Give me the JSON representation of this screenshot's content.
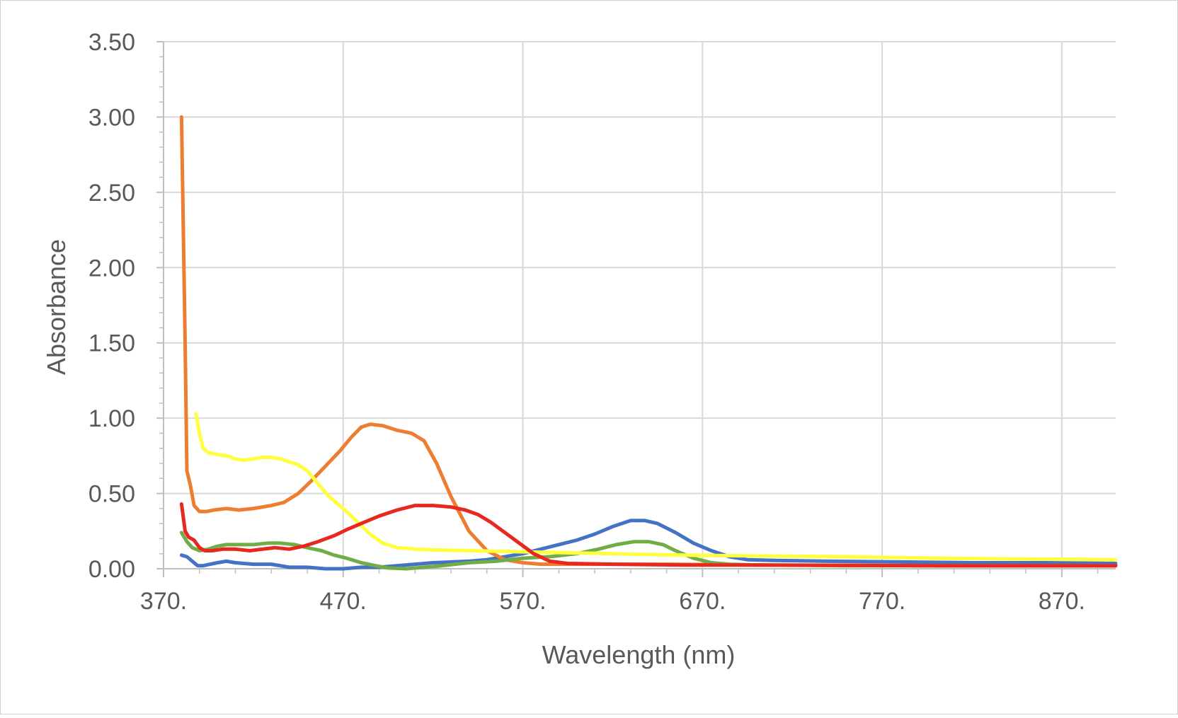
{
  "chart_data": {
    "type": "line",
    "title": "",
    "xlabel": "Wavelength (nm)",
    "ylabel": "Absorbance",
    "xlim": [
      370,
      900
    ],
    "ylim": [
      0,
      3.5
    ],
    "x_ticks": [
      370,
      470,
      570,
      670,
      770,
      870
    ],
    "x_tick_labels": [
      "370.",
      "470.",
      "570.",
      "670.",
      "770.",
      "870."
    ],
    "y_ticks": [
      0,
      0.5,
      1,
      1.5,
      2,
      2.5,
      3,
      3.5
    ],
    "y_tick_labels": [
      "0.00",
      "0.50",
      "1.00",
      "1.50",
      "2.00",
      "2.50",
      "3.00",
      "3.50"
    ],
    "grid": true,
    "legend": "none",
    "series": [
      {
        "color": "#4472C4",
        "points": [
          [
            380,
            0.09
          ],
          [
            383,
            0.08
          ],
          [
            386,
            0.05
          ],
          [
            389,
            0.02
          ],
          [
            392,
            0.02
          ],
          [
            396,
            0.03
          ],
          [
            400,
            0.04
          ],
          [
            405,
            0.05
          ],
          [
            410,
            0.04
          ],
          [
            420,
            0.03
          ],
          [
            430,
            0.03
          ],
          [
            440,
            0.01
          ],
          [
            450,
            0.01
          ],
          [
            460,
            0.0
          ],
          [
            470,
            0.0
          ],
          [
            480,
            0.01
          ],
          [
            490,
            0.01
          ],
          [
            500,
            0.02
          ],
          [
            510,
            0.03
          ],
          [
            520,
            0.04
          ],
          [
            530,
            0.045
          ],
          [
            540,
            0.05
          ],
          [
            550,
            0.06
          ],
          [
            560,
            0.08
          ],
          [
            570,
            0.1
          ],
          [
            580,
            0.13
          ],
          [
            590,
            0.16
          ],
          [
            600,
            0.19
          ],
          [
            610,
            0.23
          ],
          [
            620,
            0.28
          ],
          [
            630,
            0.32
          ],
          [
            638,
            0.32
          ],
          [
            645,
            0.3
          ],
          [
            655,
            0.24
          ],
          [
            665,
            0.17
          ],
          [
            675,
            0.12
          ],
          [
            685,
            0.08
          ],
          [
            695,
            0.06
          ],
          [
            710,
            0.055
          ],
          [
            740,
            0.05
          ],
          [
            780,
            0.045
          ],
          [
            820,
            0.04
          ],
          [
            860,
            0.04
          ],
          [
            900,
            0.035
          ]
        ]
      },
      {
        "color": "#ED7D31",
        "points": [
          [
            380,
            3.0
          ],
          [
            382,
            1.5
          ],
          [
            383,
            0.65
          ],
          [
            385,
            0.55
          ],
          [
            387,
            0.42
          ],
          [
            390,
            0.38
          ],
          [
            394,
            0.38
          ],
          [
            398,
            0.39
          ],
          [
            405,
            0.4
          ],
          [
            412,
            0.39
          ],
          [
            420,
            0.4
          ],
          [
            430,
            0.42
          ],
          [
            437,
            0.44
          ],
          [
            445,
            0.5
          ],
          [
            452,
            0.58
          ],
          [
            460,
            0.68
          ],
          [
            468,
            0.78
          ],
          [
            475,
            0.88
          ],
          [
            480,
            0.94
          ],
          [
            485,
            0.96
          ],
          [
            492,
            0.95
          ],
          [
            500,
            0.92
          ],
          [
            508,
            0.9
          ],
          [
            515,
            0.85
          ],
          [
            522,
            0.7
          ],
          [
            530,
            0.48
          ],
          [
            540,
            0.25
          ],
          [
            550,
            0.12
          ],
          [
            560,
            0.06
          ],
          [
            570,
            0.04
          ],
          [
            580,
            0.03
          ],
          [
            600,
            0.03
          ],
          [
            650,
            0.03
          ],
          [
            700,
            0.025
          ],
          [
            800,
            0.02
          ],
          [
            900,
            0.02
          ]
        ]
      },
      {
        "color": "#70AD47",
        "points": [
          [
            380,
            0.24
          ],
          [
            383,
            0.18
          ],
          [
            386,
            0.14
          ],
          [
            390,
            0.12
          ],
          [
            395,
            0.13
          ],
          [
            400,
            0.15
          ],
          [
            405,
            0.16
          ],
          [
            412,
            0.16
          ],
          [
            420,
            0.16
          ],
          [
            428,
            0.17
          ],
          [
            435,
            0.17
          ],
          [
            443,
            0.16
          ],
          [
            450,
            0.14
          ],
          [
            458,
            0.12
          ],
          [
            465,
            0.09
          ],
          [
            472,
            0.07
          ],
          [
            480,
            0.04
          ],
          [
            488,
            0.02
          ],
          [
            495,
            0.005
          ],
          [
            505,
            0.0
          ],
          [
            515,
            0.01
          ],
          [
            525,
            0.02
          ],
          [
            540,
            0.04
          ],
          [
            555,
            0.05
          ],
          [
            570,
            0.07
          ],
          [
            585,
            0.08
          ],
          [
            600,
            0.1
          ],
          [
            612,
            0.13
          ],
          [
            622,
            0.16
          ],
          [
            632,
            0.18
          ],
          [
            640,
            0.18
          ],
          [
            648,
            0.16
          ],
          [
            655,
            0.12
          ],
          [
            665,
            0.07
          ],
          [
            675,
            0.04
          ],
          [
            685,
            0.03
          ],
          [
            700,
            0.025
          ],
          [
            750,
            0.02
          ],
          [
            800,
            0.02
          ],
          [
            900,
            0.02
          ]
        ]
      },
      {
        "color": "#FFFF40",
        "points": [
          [
            388,
            1.03
          ],
          [
            390,
            0.9
          ],
          [
            392,
            0.8
          ],
          [
            395,
            0.77
          ],
          [
            400,
            0.76
          ],
          [
            405,
            0.75
          ],
          [
            410,
            0.73
          ],
          [
            415,
            0.72
          ],
          [
            420,
            0.73
          ],
          [
            425,
            0.74
          ],
          [
            430,
            0.74
          ],
          [
            435,
            0.73
          ],
          [
            440,
            0.71
          ],
          [
            445,
            0.69
          ],
          [
            450,
            0.65
          ],
          [
            455,
            0.58
          ],
          [
            462,
            0.48
          ],
          [
            470,
            0.4
          ],
          [
            478,
            0.31
          ],
          [
            485,
            0.23
          ],
          [
            492,
            0.17
          ],
          [
            500,
            0.14
          ],
          [
            510,
            0.13
          ],
          [
            520,
            0.125
          ],
          [
            540,
            0.12
          ],
          [
            560,
            0.115
          ],
          [
            580,
            0.11
          ],
          [
            620,
            0.1
          ],
          [
            660,
            0.09
          ],
          [
            700,
            0.085
          ],
          [
            750,
            0.08
          ],
          [
            800,
            0.07
          ],
          [
            850,
            0.065
          ],
          [
            900,
            0.06
          ]
        ]
      },
      {
        "color": "#E8281E",
        "points": [
          [
            380,
            0.43
          ],
          [
            382,
            0.25
          ],
          [
            384,
            0.21
          ],
          [
            387,
            0.19
          ],
          [
            390,
            0.14
          ],
          [
            393,
            0.12
          ],
          [
            397,
            0.12
          ],
          [
            403,
            0.13
          ],
          [
            410,
            0.13
          ],
          [
            418,
            0.12
          ],
          [
            425,
            0.13
          ],
          [
            432,
            0.14
          ],
          [
            440,
            0.13
          ],
          [
            448,
            0.15
          ],
          [
            456,
            0.18
          ],
          [
            465,
            0.22
          ],
          [
            472,
            0.26
          ],
          [
            480,
            0.3
          ],
          [
            490,
            0.35
          ],
          [
            500,
            0.39
          ],
          [
            510,
            0.42
          ],
          [
            520,
            0.42
          ],
          [
            530,
            0.41
          ],
          [
            538,
            0.39
          ],
          [
            545,
            0.36
          ],
          [
            552,
            0.31
          ],
          [
            560,
            0.24
          ],
          [
            568,
            0.17
          ],
          [
            576,
            0.1
          ],
          [
            585,
            0.05
          ],
          [
            595,
            0.035
          ],
          [
            620,
            0.03
          ],
          [
            660,
            0.025
          ],
          [
            700,
            0.025
          ],
          [
            800,
            0.02
          ],
          [
            900,
            0.02
          ]
        ]
      }
    ]
  }
}
